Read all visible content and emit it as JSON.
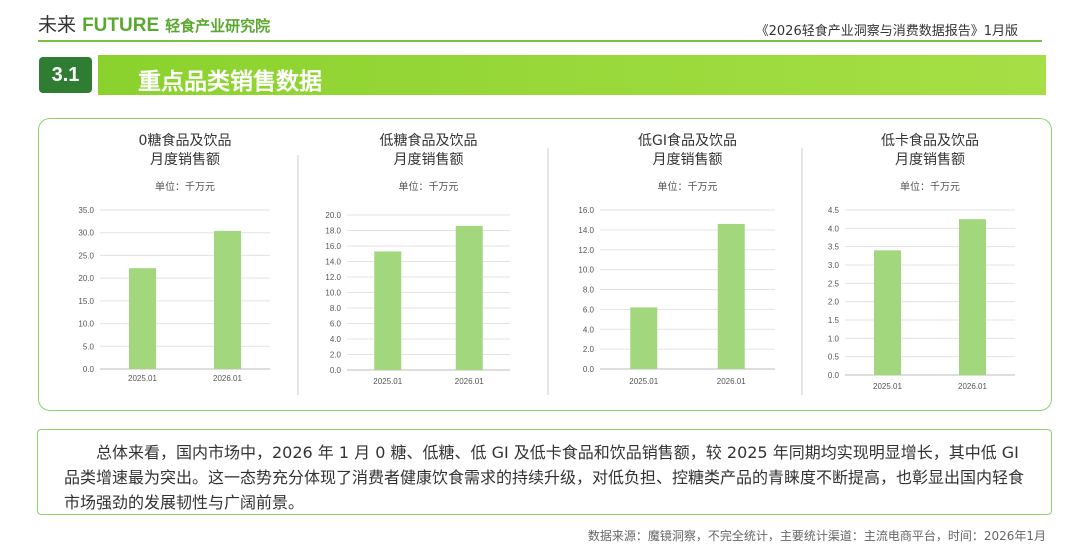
{
  "header": {
    "logo_cn": "未来",
    "logo_en": "FUTURE",
    "logo_inst": "轻食产业研究院",
    "report_title": "《2026轻食产业洞察与消费数据报告》1月版"
  },
  "section": {
    "number": "3.1",
    "title": "重点品类销售数据"
  },
  "chart_data": [
    {
      "type": "bar",
      "title": "0糖食品及饮品",
      "subtitle": "月度销售额",
      "unit": "单位：千万元",
      "categories": [
        "2025.01",
        "2026.01"
      ],
      "values": [
        22.2,
        30.4
      ],
      "ylim": [
        0,
        35
      ],
      "yticks": [
        "0.0",
        "5.0",
        "10.0",
        "15.0",
        "20.0",
        "25.0",
        "30.0",
        "35.0"
      ],
      "grid": true,
      "color": "#a3d77e"
    },
    {
      "type": "bar",
      "title": "低糖食品及饮品",
      "subtitle": "月度销售额",
      "unit": "单位：千万元",
      "categories": [
        "2025.01",
        "2026.01"
      ],
      "values": [
        15.3,
        18.6
      ],
      "ylim": [
        0,
        20
      ],
      "yticks": [
        "0.0",
        "2.0",
        "4.0",
        "6.0",
        "8.0",
        "10.0",
        "12.0",
        "14.0",
        "16.0",
        "18.0",
        "20.0"
      ],
      "grid": true,
      "color": "#a3d77e"
    },
    {
      "type": "bar",
      "title": "低GI食品及饮品",
      "subtitle": "月度销售额",
      "unit": "单位：千万元",
      "categories": [
        "2025.01",
        "2026.01"
      ],
      "values": [
        6.2,
        14.6
      ],
      "ylim": [
        0,
        16
      ],
      "yticks": [
        "0.0",
        "2.0",
        "4.0",
        "6.0",
        "8.0",
        "10.0",
        "12.0",
        "14.0",
        "16.0"
      ],
      "grid": true,
      "color": "#a3d77e"
    },
    {
      "type": "bar",
      "title": "低卡食品及饮品",
      "subtitle": "月度销售额",
      "unit": "单位：千万元",
      "categories": [
        "2025.01",
        "2026.01"
      ],
      "values": [
        3.4,
        4.25
      ],
      "ylim": [
        0,
        4.5
      ],
      "yticks": [
        "0.0",
        "0.5",
        "1.0",
        "1.5",
        "2.0",
        "2.5",
        "3.0",
        "3.5",
        "4.0",
        "4.5"
      ],
      "grid": true,
      "color": "#a3d77e"
    }
  ],
  "summary": "总体来看，国内市场中，2026 年 1 月 0 糖、低糖、低 GI 及低卡食品和饮品销售额，较 2025 年同期均实现明显增长，其中低 GI 品类增速最为突出。这一态势充分体现了消费者健康饮食需求的持续升级，对低负担、控糖类产品的青睐度不断提高，也彰显出国内轻食市场强劲的发展韧性与广阔前景。",
  "source": "数据来源：魔镜洞察，不完全统计，主要统计渠道：主流电商平台，时间：2026年1月"
}
